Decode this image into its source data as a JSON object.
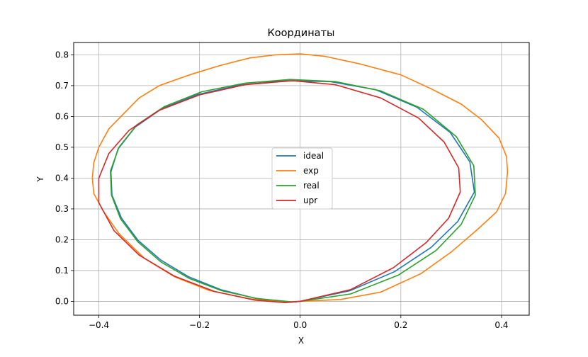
{
  "chart_data": {
    "type": "line",
    "title": "Координаты",
    "xlabel": "X",
    "ylabel": "Y",
    "xlim": [
      -0.45,
      0.455
    ],
    "ylim": [
      -0.045,
      0.84
    ],
    "xticks": [
      -0.4,
      -0.2,
      0.0,
      0.2,
      0.4
    ],
    "xtick_labels": [
      "−0.4",
      "−0.2",
      "0.0",
      "0.2",
      "0.4"
    ],
    "yticks": [
      0.0,
      0.1,
      0.2,
      0.3,
      0.4,
      0.5,
      0.6,
      0.7,
      0.8
    ],
    "ytick_labels": [
      "0.0",
      "0.1",
      "0.2",
      "0.3",
      "0.4",
      "0.5",
      "0.6",
      "0.7",
      "0.8"
    ],
    "grid": true,
    "legend_position": "center",
    "series": [
      {
        "name": "ideal",
        "color": "#1f77b4",
        "points": [
          [
            0.0,
            0.0
          ],
          [
            0.098,
            0.034
          ],
          [
            0.187,
            0.096
          ],
          [
            0.26,
            0.175
          ],
          [
            0.313,
            0.259
          ],
          [
            0.346,
            0.355
          ],
          [
            0.337,
            0.453
          ],
          [
            0.298,
            0.548
          ],
          [
            0.232,
            0.63
          ],
          [
            0.15,
            0.687
          ],
          [
            0.06,
            0.713
          ],
          [
            -0.03,
            0.716
          ],
          [
            -0.12,
            0.702
          ],
          [
            -0.204,
            0.671
          ],
          [
            -0.275,
            0.625
          ],
          [
            -0.328,
            0.565
          ],
          [
            -0.362,
            0.494
          ],
          [
            -0.376,
            0.42
          ],
          [
            -0.374,
            0.345
          ],
          [
            -0.355,
            0.27
          ],
          [
            -0.322,
            0.198
          ],
          [
            -0.277,
            0.134
          ],
          [
            -0.222,
            0.08
          ],
          [
            -0.158,
            0.038
          ],
          [
            -0.089,
            0.01
          ],
          [
            -0.02,
            -0.003
          ],
          [
            0.0,
            0.0
          ]
        ]
      },
      {
        "name": "exp",
        "color": "#ff7f0e",
        "points": [
          [
            0.0,
            0.0
          ],
          [
            0.08,
            0.006
          ],
          [
            0.16,
            0.03
          ],
          [
            0.24,
            0.09
          ],
          [
            0.3,
            0.16
          ],
          [
            0.35,
            0.23
          ],
          [
            0.39,
            0.29
          ],
          [
            0.408,
            0.35
          ],
          [
            0.412,
            0.42
          ],
          [
            0.41,
            0.47
          ],
          [
            0.395,
            0.53
          ],
          [
            0.36,
            0.59
          ],
          [
            0.32,
            0.64
          ],
          [
            0.26,
            0.69
          ],
          [
            0.2,
            0.735
          ],
          [
            0.12,
            0.77
          ],
          [
            0.05,
            0.795
          ],
          [
            0.0,
            0.803
          ],
          [
            -0.05,
            0.8
          ],
          [
            -0.1,
            0.79
          ],
          [
            -0.16,
            0.765
          ],
          [
            -0.22,
            0.735
          ],
          [
            -0.28,
            0.7
          ],
          [
            -0.32,
            0.66
          ],
          [
            -0.35,
            0.61
          ],
          [
            -0.38,
            0.56
          ],
          [
            -0.4,
            0.5
          ],
          [
            -0.41,
            0.45
          ],
          [
            -0.413,
            0.4
          ],
          [
            -0.41,
            0.35
          ],
          [
            -0.39,
            0.29
          ],
          [
            -0.36,
            0.22
          ],
          [
            -0.31,
            0.14
          ],
          [
            -0.25,
            0.08
          ],
          [
            -0.18,
            0.035
          ],
          [
            -0.1,
            0.008
          ],
          [
            -0.03,
            -0.002
          ],
          [
            0.0,
            0.0
          ]
        ]
      },
      {
        "name": "real",
        "color": "#2ca02c",
        "points": [
          [
            0.0,
            0.0
          ],
          [
            0.1,
            0.024
          ],
          [
            0.195,
            0.085
          ],
          [
            0.27,
            0.165
          ],
          [
            0.32,
            0.25
          ],
          [
            0.348,
            0.345
          ],
          [
            0.345,
            0.44
          ],
          [
            0.31,
            0.535
          ],
          [
            0.245,
            0.623
          ],
          [
            0.16,
            0.683
          ],
          [
            0.07,
            0.713
          ],
          [
            -0.02,
            0.72
          ],
          [
            -0.11,
            0.708
          ],
          [
            -0.196,
            0.68
          ],
          [
            -0.27,
            0.632
          ],
          [
            -0.325,
            0.572
          ],
          [
            -0.36,
            0.5
          ],
          [
            -0.377,
            0.423
          ],
          [
            -0.375,
            0.345
          ],
          [
            -0.357,
            0.268
          ],
          [
            -0.323,
            0.194
          ],
          [
            -0.277,
            0.128
          ],
          [
            -0.22,
            0.074
          ],
          [
            -0.155,
            0.034
          ],
          [
            -0.085,
            0.009
          ],
          [
            -0.015,
            -0.002
          ],
          [
            0.0,
            0.0
          ]
        ]
      },
      {
        "name": "upr",
        "color": "#d62728",
        "points": [
          [
            0.0,
            0.0
          ],
          [
            0.1,
            0.038
          ],
          [
            0.185,
            0.109
          ],
          [
            0.25,
            0.19
          ],
          [
            0.295,
            0.27
          ],
          [
            0.318,
            0.355
          ],
          [
            0.315,
            0.433
          ],
          [
            0.286,
            0.517
          ],
          [
            0.235,
            0.595
          ],
          [
            0.16,
            0.66
          ],
          [
            0.07,
            0.703
          ],
          [
            -0.015,
            0.716
          ],
          [
            -0.11,
            0.703
          ],
          [
            -0.2,
            0.67
          ],
          [
            -0.28,
            0.62
          ],
          [
            -0.34,
            0.555
          ],
          [
            -0.38,
            0.48
          ],
          [
            -0.4,
            0.4
          ],
          [
            -0.4,
            0.32
          ],
          [
            -0.37,
            0.23
          ],
          [
            -0.32,
            0.15
          ],
          [
            -0.25,
            0.082
          ],
          [
            -0.17,
            0.032
          ],
          [
            -0.09,
            0.004
          ],
          [
            -0.03,
            -0.004
          ],
          [
            0.0,
            0.0
          ]
        ]
      }
    ]
  }
}
